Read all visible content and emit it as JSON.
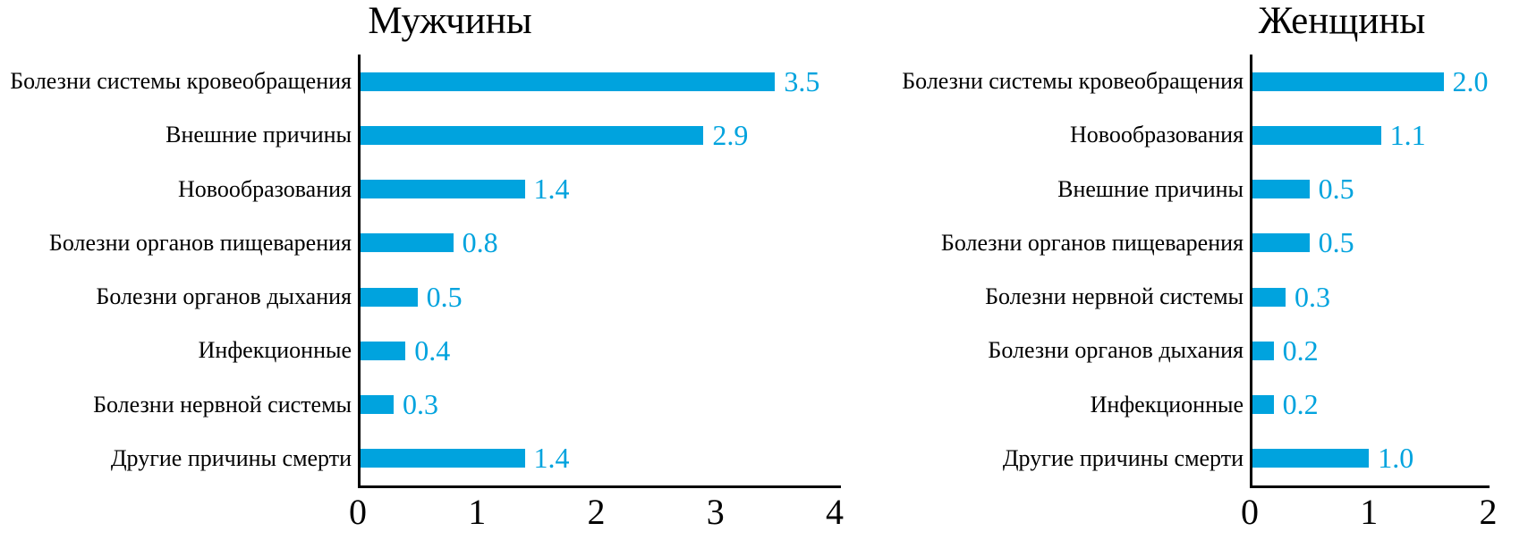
{
  "colors": {
    "bar": "#00A3DE",
    "value_label": "#00A3DE",
    "axis": "#000000",
    "text": "#000000",
    "background": "#FFFFFF"
  },
  "chart_data": [
    {
      "type": "bar",
      "orientation": "horizontal",
      "title": "Мужчины",
      "categories": [
        "Болезни системы кровеобращения",
        "Внешние причины",
        "Новообразования",
        "Болезни органов пищеварения",
        "Болезни органов дыхания",
        "Инфекционные",
        "Болезни нервной системы",
        "Другие причины смерти"
      ],
      "values": [
        3.5,
        2.9,
        1.4,
        0.8,
        0.5,
        0.4,
        0.3,
        1.4
      ],
      "value_labels": [
        "3.5",
        "2.9",
        "1.4",
        "0.8",
        "0.5",
        "0.4",
        "0.3",
        "1.4"
      ],
      "xlabel": "",
      "ylabel": "",
      "xlim": [
        0,
        4
      ],
      "x_ticks": [
        "0",
        "1",
        "2",
        "3",
        "4"
      ],
      "grid": false,
      "legend": false,
      "data_labels_position": "right-of-bar"
    },
    {
      "type": "bar",
      "orientation": "horizontal",
      "title": "Женщины",
      "categories": [
        "Болезни системы кровеобращения",
        "Новообразования",
        "Внешние причины",
        "Болезни органов пищеварения",
        "Болезни нервной системы",
        "Болезни органов дыхания",
        "Инфекционные",
        "Другие причины смерти"
      ],
      "values": [
        2.0,
        1.1,
        0.5,
        0.5,
        0.3,
        0.2,
        0.2,
        1.0
      ],
      "value_labels": [
        "2.0",
        "1.1",
        "0.5",
        "0.5",
        "0.3",
        "0.2",
        "0.2",
        "1.0"
      ],
      "xlabel": "",
      "ylabel": "",
      "xlim": [
        0,
        2
      ],
      "x_ticks": [
        "0",
        "1",
        "2"
      ],
      "grid": false,
      "legend": false,
      "data_labels_position": "right-of-bar"
    }
  ]
}
